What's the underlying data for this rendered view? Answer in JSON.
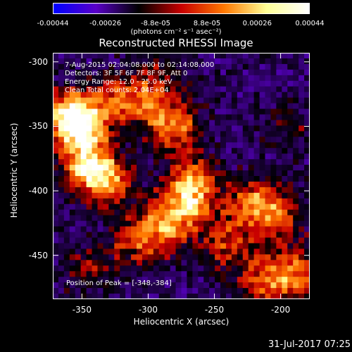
{
  "colorbar": {
    "ticks": [
      "-0.00044",
      "-0.00026",
      "-8.8e-05",
      "8.8e-05",
      "0.00026",
      "0.00044"
    ],
    "tick_values": [
      -0.00044,
      -0.00026,
      -8.8e-05,
      8.8e-05,
      0.00026,
      0.00044
    ],
    "range": [
      -0.00044,
      0.00044
    ],
    "unit": "(photons cm⁻² s⁻¹ asec⁻²)",
    "colors": [
      "#0000ff",
      "#5a00c8",
      "#000000",
      "#c80000",
      "#ff7800",
      "#ffff96",
      "#ffffff"
    ]
  },
  "footer": {
    "date": "31-Jul-2017 07:25"
  },
  "chart_data": {
    "type": "heatmap",
    "title": "Reconstructed RHESSI Image",
    "xlabel": "Heliocentric X (arcsec)",
    "ylabel": "Heliocentric Y (arcsec)",
    "xlim": [
      -372,
      -178
    ],
    "ylim": [
      -484,
      -293
    ],
    "xticks": [
      -350,
      -300,
      -250,
      -200
    ],
    "yticks": [
      -300,
      -350,
      -400,
      -450
    ],
    "xtick_labels": [
      "-350",
      "-300",
      "-250",
      "-200"
    ],
    "ytick_labels": [
      "-300",
      "-350",
      "-400",
      "-450"
    ],
    "annotations": [
      "7-Aug-2015 02:04:08.000 to 02:14:08.000",
      "Detectors: 3F 5F 6F 7F 8F 9F, Att 0",
      "Energy Range: 12.0 - 25.0 keV",
      "Clean       Total counts: 2.04E+04"
    ],
    "peak_label": "Position of Peak = [-348,-384]",
    "peak": [
      -348,
      -384
    ],
    "blobs": [
      {
        "x": -352,
        "y": -350,
        "value": 0.00042
      },
      {
        "x": -360,
        "y": -340,
        "value": 0.00036
      },
      {
        "x": -345,
        "y": -380,
        "value": 0.00044
      },
      {
        "x": -330,
        "y": -395,
        "value": 0.0003
      },
      {
        "x": -325,
        "y": -330,
        "value": 0.00025
      },
      {
        "x": -300,
        "y": -330,
        "value": 0.00022
      },
      {
        "x": -280,
        "y": -350,
        "value": 0.00034
      },
      {
        "x": -265,
        "y": -395,
        "value": 0.00038
      },
      {
        "x": -275,
        "y": -415,
        "value": 0.0003
      },
      {
        "x": -290,
        "y": -430,
        "value": 0.00024
      },
      {
        "x": -310,
        "y": -440,
        "value": 0.00022
      },
      {
        "x": -240,
        "y": -440,
        "value": 0.00026
      },
      {
        "x": -220,
        "y": -410,
        "value": 0.00032
      },
      {
        "x": -200,
        "y": -420,
        "value": 0.00024
      },
      {
        "x": -190,
        "y": -465,
        "value": 0.00034
      },
      {
        "x": -215,
        "y": -470,
        "value": 0.00026
      },
      {
        "x": -345,
        "y": -460,
        "value": 0.00016
      },
      {
        "x": -290,
        "y": -305,
        "value": 0.00014
      },
      {
        "x": -195,
        "y": -350,
        "value": 0.00012
      }
    ]
  }
}
